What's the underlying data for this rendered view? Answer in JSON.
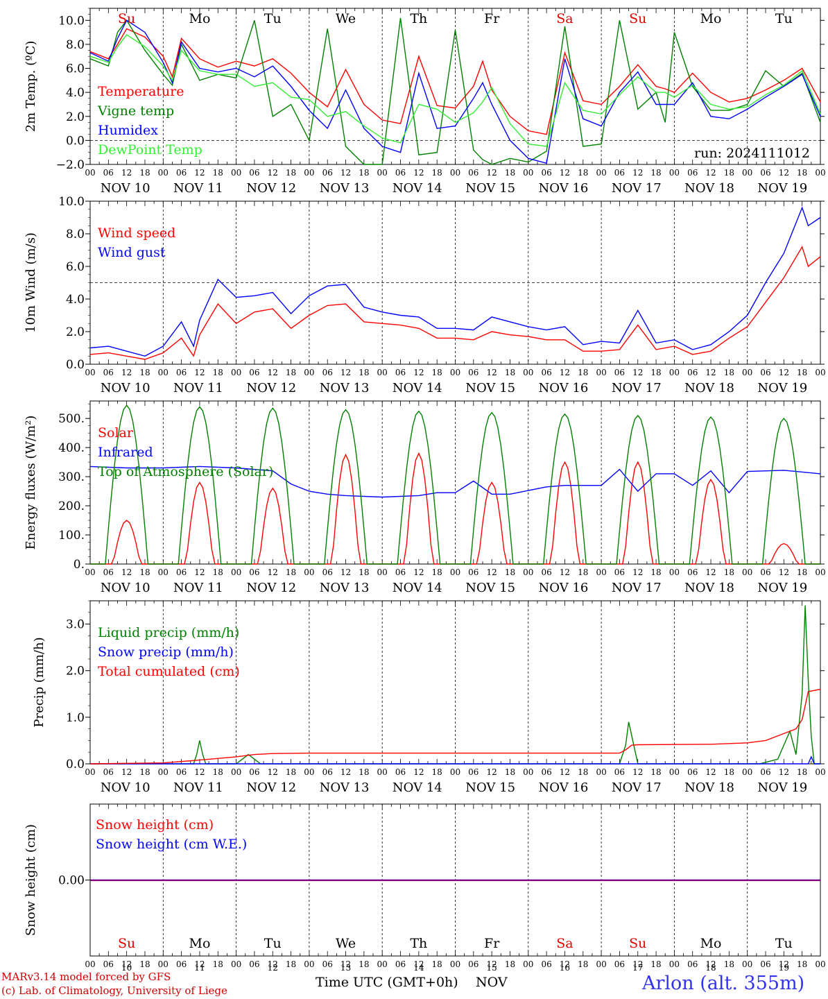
{
  "header": {
    "run_label": "run: 2024111012"
  },
  "footer": {
    "credit_line1": "MARv3.14 model forced by GFS",
    "credit_line2": "(c) Lab. of Climatology, University of Liege",
    "xaxis_title": "Time UTC (GMT+0h)",
    "month_label": "NOV",
    "station": "Arlon (alt. 355m)"
  },
  "days": [
    {
      "abbr": "Su",
      "date": "NOV 10",
      "num": "10",
      "color": "#e00000"
    },
    {
      "abbr": "Mo",
      "date": "NOV 11",
      "num": "11",
      "color": "#000000"
    },
    {
      "abbr": "Tu",
      "date": "NOV 12",
      "num": "12",
      "color": "#000000"
    },
    {
      "abbr": "We",
      "date": "NOV 13",
      "num": "13",
      "color": "#000000"
    },
    {
      "abbr": "Th",
      "date": "NOV 14",
      "num": "14",
      "color": "#000000"
    },
    {
      "abbr": "Fr",
      "date": "NOV 15",
      "num": "15",
      "color": "#000000"
    },
    {
      "abbr": "Sa",
      "date": "NOV 16",
      "num": "16",
      "color": "#e00000"
    },
    {
      "abbr": "Su",
      "date": "NOV 17",
      "num": "17",
      "color": "#e00000"
    },
    {
      "abbr": "Mo",
      "date": "NOV 18",
      "num": "18",
      "color": "#000000"
    },
    {
      "abbr": "Tu",
      "date": "NOV 19",
      "num": "19",
      "color": "#000000"
    }
  ],
  "hour_ticks": [
    "00",
    "06",
    "12",
    "18"
  ],
  "colors": {
    "red": "#ff0000",
    "darkgreen": "#008000",
    "blue": "#0000ff",
    "lightgreen": "#33ee33",
    "purple": "#880088"
  },
  "chart_data": [
    {
      "type": "line",
      "ylabel": "2m Temp. (ºC)",
      "ylim": [
        -2,
        11
      ],
      "yticks": [
        -2,
        0,
        2,
        4,
        6,
        8,
        10
      ],
      "ytick_labels": [
        "−2.0",
        "0.0",
        "2.0",
        "4.0",
        "6.0",
        "8.0",
        "10.0"
      ],
      "reference_line": 0,
      "x_unit": "hours since NOV 10 00 UTC",
      "series": [
        {
          "name": "Temperature",
          "color": "#ff0000",
          "x": [
            0,
            6,
            9,
            12,
            18,
            24,
            27,
            30,
            36,
            42,
            48,
            54,
            60,
            66,
            72,
            78,
            84,
            90,
            96,
            102,
            108,
            114,
            120,
            126,
            129,
            132,
            138,
            144,
            150,
            156,
            162,
            168,
            174,
            180,
            186,
            189,
            192,
            198,
            204,
            210,
            216,
            222,
            228,
            234,
            240
          ],
          "values": [
            7.4,
            6.8,
            8.0,
            9.3,
            8.6,
            7.0,
            5.3,
            8.5,
            6.8,
            6.1,
            6.6,
            6.2,
            6.8,
            5.6,
            4.0,
            2.8,
            5.9,
            3.0,
            1.7,
            1.4,
            7.0,
            2.9,
            2.7,
            4.5,
            6.6,
            4.2,
            2.0,
            0.8,
            0.5,
            7.3,
            3.3,
            3.0,
            4.5,
            6.3,
            4.5,
            4.3,
            4.0,
            5.6,
            4.0,
            3.2,
            3.5,
            4.2,
            5.0,
            6.0,
            3.2
          ]
        },
        {
          "name": "Vigne temp",
          "color": "#008000",
          "x": [
            0,
            6,
            9,
            12,
            18,
            24,
            27,
            30,
            36,
            42,
            48,
            54,
            60,
            66,
            72,
            78,
            84,
            90,
            96,
            102,
            108,
            114,
            120,
            126,
            129,
            132,
            138,
            144,
            150,
            156,
            162,
            168,
            174,
            180,
            186,
            189,
            192,
            198,
            204,
            210,
            216,
            222,
            228,
            234,
            240
          ],
          "values": [
            6.8,
            6.2,
            9.0,
            10.0,
            7.5,
            5.5,
            4.6,
            8.0,
            5.0,
            5.5,
            5.2,
            10.0,
            2.0,
            3.0,
            0.0,
            9.3,
            -0.5,
            -2.0,
            -2.0,
            10.2,
            -1.2,
            -1.0,
            9.2,
            -0.8,
            -1.6,
            -2.0,
            -1.5,
            -1.8,
            -0.9,
            9.5,
            -0.5,
            -0.3,
            10.0,
            2.6,
            4.0,
            1.5,
            9.0,
            4.5,
            2.5,
            2.5,
            3.0,
            5.8,
            4.5,
            5.6,
            1.5
          ]
        },
        {
          "name": "Humidex",
          "color": "#0000ff",
          "x": [
            0,
            6,
            9,
            12,
            18,
            24,
            27,
            30,
            36,
            42,
            48,
            54,
            60,
            66,
            72,
            78,
            84,
            90,
            96,
            102,
            108,
            114,
            120,
            126,
            129,
            132,
            138,
            144,
            150,
            156,
            162,
            168,
            174,
            180,
            186,
            189,
            192,
            198,
            204,
            210,
            216,
            222,
            228,
            234,
            240
          ],
          "values": [
            7.3,
            6.6,
            8.5,
            10.0,
            9.0,
            6.5,
            4.8,
            8.2,
            6.0,
            5.7,
            6.0,
            5.3,
            6.2,
            4.5,
            2.5,
            1.0,
            4.2,
            1.0,
            -0.5,
            -1.0,
            5.6,
            1.0,
            1.2,
            3.5,
            4.8,
            3.0,
            0.0,
            -1.5,
            -1.9,
            6.8,
            1.8,
            1.2,
            4.0,
            5.7,
            3.0,
            3.0,
            3.0,
            4.8,
            2.0,
            1.8,
            2.6,
            3.6,
            4.5,
            5.5,
            2.0
          ]
        },
        {
          "name": "DewPoint Temp",
          "color": "#33ee33",
          "x": [
            0,
            6,
            9,
            12,
            18,
            24,
            27,
            30,
            36,
            42,
            48,
            54,
            60,
            66,
            72,
            78,
            84,
            90,
            96,
            102,
            108,
            114,
            120,
            126,
            129,
            132,
            138,
            144,
            150,
            156,
            162,
            168,
            174,
            180,
            186,
            189,
            192,
            198,
            204,
            210,
            216,
            222,
            228,
            234,
            240
          ],
          "values": [
            7.0,
            6.5,
            7.8,
            8.8,
            7.8,
            6.2,
            5.0,
            7.5,
            5.8,
            5.5,
            5.5,
            4.5,
            4.8,
            3.6,
            3.4,
            2.0,
            2.4,
            1.2,
            0.2,
            -0.2,
            3.0,
            2.6,
            1.5,
            2.3,
            3.2,
            4.4,
            1.4,
            -0.3,
            -0.5,
            4.8,
            2.5,
            2.2,
            3.8,
            5.3,
            4.0,
            4.0,
            3.6,
            4.6,
            3.0,
            2.6,
            2.8,
            3.8,
            4.6,
            5.8,
            2.2
          ]
        }
      ]
    },
    {
      "type": "line",
      "ylabel": "10m Wind (m/s)",
      "ylim": [
        0,
        10
      ],
      "yticks": [
        0,
        2,
        4,
        6,
        8,
        10
      ],
      "ytick_labels": [
        "0.0",
        "2.0",
        "4.0",
        "6.0",
        "8.0",
        "10.0"
      ],
      "reference_line": 5,
      "x_unit": "hours since NOV 10 00 UTC",
      "series": [
        {
          "name": "Wind speed",
          "color": "#ff0000",
          "x": [
            0,
            6,
            12,
            18,
            24,
            30,
            34,
            36,
            42,
            48,
            54,
            60,
            66,
            72,
            78,
            84,
            90,
            96,
            102,
            108,
            114,
            120,
            126,
            132,
            138,
            144,
            150,
            156,
            162,
            168,
            174,
            180,
            186,
            192,
            198,
            204,
            210,
            216,
            222,
            228,
            234,
            236,
            240
          ],
          "values": [
            0.6,
            0.7,
            0.5,
            0.3,
            0.7,
            1.6,
            0.5,
            1.8,
            3.7,
            2.5,
            3.2,
            3.4,
            2.2,
            3.0,
            3.6,
            3.7,
            2.6,
            2.5,
            2.4,
            2.2,
            1.6,
            1.6,
            1.5,
            2.0,
            1.8,
            1.7,
            1.5,
            1.5,
            0.8,
            0.8,
            0.9,
            2.4,
            0.9,
            1.1,
            0.6,
            0.8,
            1.6,
            2.3,
            3.8,
            5.3,
            7.2,
            6.0,
            6.6
          ]
        },
        {
          "name": "Wind gust",
          "color": "#0000ff",
          "x": [
            0,
            6,
            12,
            18,
            24,
            30,
            34,
            36,
            42,
            48,
            54,
            60,
            66,
            72,
            78,
            84,
            90,
            96,
            102,
            108,
            114,
            120,
            126,
            132,
            138,
            144,
            150,
            156,
            162,
            168,
            174,
            180,
            186,
            192,
            198,
            204,
            210,
            216,
            222,
            228,
            234,
            236,
            240
          ],
          "values": [
            1.0,
            1.1,
            0.8,
            0.5,
            1.1,
            2.6,
            1.1,
            2.7,
            5.2,
            4.1,
            4.2,
            4.4,
            3.1,
            4.2,
            4.8,
            4.9,
            3.5,
            3.2,
            3.0,
            2.9,
            2.2,
            2.2,
            2.1,
            2.9,
            2.6,
            2.3,
            2.1,
            2.3,
            1.2,
            1.4,
            1.3,
            3.3,
            1.3,
            1.5,
            0.9,
            1.2,
            2.0,
            3.0,
            5.0,
            6.8,
            9.6,
            8.5,
            9.0
          ]
        }
      ]
    },
    {
      "type": "line",
      "ylabel": "Energy fluxes (W/m²)",
      "ylim": [
        0,
        560
      ],
      "yticks": [
        0,
        100,
        200,
        300,
        400,
        500
      ],
      "ytick_labels": [
        "0.",
        "100.",
        "200.",
        "300.",
        "400.",
        "500."
      ],
      "x_unit": "hours since NOV 10 00 UTC",
      "series": [
        {
          "name": "Solar",
          "color": "#ff0000",
          "peaks": [
            150,
            280,
            260,
            375,
            380,
            280,
            350,
            350,
            290,
            70
          ]
        },
        {
          "name": "Infrared",
          "color": "#0000ff",
          "x": [
            0,
            12,
            24,
            36,
            48,
            60,
            66,
            72,
            78,
            84,
            96,
            108,
            114,
            120,
            126,
            132,
            138,
            150,
            156,
            162,
            168,
            174,
            180,
            186,
            192,
            198,
            204,
            210,
            216,
            228,
            240
          ],
          "values": [
            335,
            330,
            330,
            335,
            330,
            320,
            275,
            250,
            240,
            235,
            230,
            235,
            245,
            245,
            285,
            240,
            240,
            265,
            270,
            270,
            270,
            325,
            250,
            310,
            310,
            270,
            320,
            245,
            318,
            322,
            310
          ]
        },
        {
          "name": "Top of Atmosphere (Solar)",
          "color": "#008000",
          "peaks": [
            545,
            540,
            535,
            530,
            525,
            520,
            515,
            510,
            505,
            500
          ]
        }
      ]
    },
    {
      "type": "line",
      "ylabel": "Precip (mm/h)",
      "ylim": [
        0,
        3.5
      ],
      "yticks": [
        0,
        1,
        2,
        3
      ],
      "ytick_labels": [
        "0.0",
        "1.0",
        "2.0",
        "3.0"
      ],
      "x_unit": "hours since NOV 10 00 UTC",
      "series": [
        {
          "name": "Liquid precip (mm/h)",
          "color": "#008000",
          "x": [
            0,
            34,
            35,
            36,
            37,
            38,
            48,
            50,
            52,
            54,
            56,
            174,
            176,
            177,
            178,
            180,
            220,
            226,
            228,
            230,
            232,
            234,
            235,
            236,
            237,
            238,
            240
          ],
          "values": [
            0,
            0,
            0.2,
            0.5,
            0.2,
            0,
            0,
            0.1,
            0.2,
            0.1,
            0,
            0,
            0.4,
            0.9,
            0.6,
            0,
            0,
            0.1,
            0.4,
            0.7,
            0.2,
            1.5,
            3.4,
            1.8,
            0.6,
            0,
            0
          ]
        },
        {
          "name": "Snow precip (mm/h)",
          "color": "#0000ff",
          "x": [
            0,
            236,
            237,
            238,
            240
          ],
          "values": [
            0,
            0,
            0.15,
            0,
            0
          ]
        },
        {
          "name": "Total cumulated (cm)",
          "color": "#ff0000",
          "x": [
            0,
            24,
            36,
            48,
            54,
            60,
            72,
            120,
            174,
            176,
            178,
            180,
            204,
            216,
            222,
            228,
            232,
            234,
            236,
            240
          ],
          "values": [
            0,
            0.02,
            0.08,
            0.15,
            0.2,
            0.22,
            0.23,
            0.23,
            0.23,
            0.3,
            0.4,
            0.41,
            0.42,
            0.45,
            0.5,
            0.65,
            0.75,
            0.95,
            1.55,
            1.6
          ]
        }
      ]
    },
    {
      "type": "line",
      "ylabel": "Snow height (cm)",
      "ytick_labels": [
        "0.00"
      ],
      "x_unit": "hours since NOV 10 00 UTC",
      "series": [
        {
          "name": "Snow height (cm)",
          "color": "#ff0000",
          "x": [
            0,
            240
          ],
          "values": [
            0,
            0
          ]
        },
        {
          "name": "Snow height (cm W.E.)",
          "color": "#0000ff",
          "x": [
            0,
            240
          ],
          "values": [
            0,
            0
          ]
        }
      ]
    }
  ]
}
